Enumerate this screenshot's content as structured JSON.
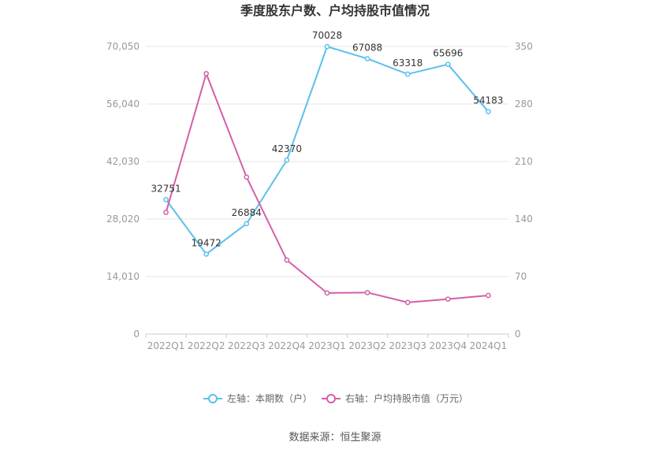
{
  "chart_data": {
    "type": "line",
    "title": "季度股东户数、户均持股市值情况",
    "categories": [
      "2022Q1",
      "2022Q2",
      "2022Q3",
      "2022Q4",
      "2023Q1",
      "2023Q2",
      "2023Q3",
      "2023Q4",
      "2024Q1"
    ],
    "series": [
      {
        "name": "左轴：本期数（户）",
        "axis": "left",
        "color": "#5bc0eb",
        "values": [
          32751,
          19472,
          26884,
          42370,
          70028,
          67088,
          63318,
          65696,
          54183
        ],
        "labels": [
          "32751",
          "19472",
          "26884",
          "42370",
          "70028",
          "67088",
          "63318",
          "65696",
          "54183"
        ]
      },
      {
        "name": "右轴：户均持股市值（万元）",
        "axis": "right",
        "color": "#d45fa8",
        "values": [
          148,
          317,
          191,
          90,
          50,
          50.5,
          38.5,
          42.5,
          47
        ]
      }
    ],
    "left_axis": {
      "ylim": [
        0,
        70050
      ],
      "ticks": [
        0,
        14010,
        28020,
        42030,
        56040,
        70050
      ],
      "tick_labels": [
        "0",
        "14,010",
        "28,020",
        "42,030",
        "56,040",
        "70,050"
      ]
    },
    "right_axis": {
      "ylim": [
        0,
        350
      ],
      "ticks": [
        0,
        70,
        140,
        210,
        280,
        350
      ],
      "tick_labels": [
        "0",
        "70",
        "140",
        "210",
        "280",
        "350"
      ]
    },
    "grid": true,
    "legend_position": "bottom-center",
    "source": "数据来源：恒生聚源"
  }
}
